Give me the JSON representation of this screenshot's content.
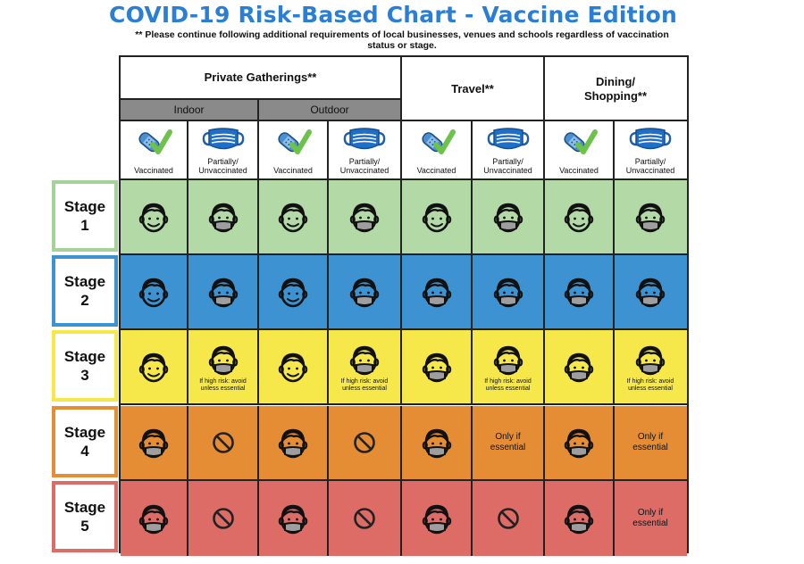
{
  "title": "COVID-19 Risk-Based Chart - Vaccine Edition",
  "subtitle": "** Please continue following additional requirements of local businesses, venues and schools regardless of vaccination status or stage.",
  "categories": {
    "private": "Private Gatherings**",
    "indoor": "Indoor",
    "outdoor": "Outdoor",
    "travel": "Travel**",
    "dining": "Dining/ Shopping**"
  },
  "columns": {
    "vaccinated": "Vaccinated",
    "unvaccinated": "Partially/ Unvaccinated"
  },
  "stages": [
    {
      "label": "Stage 1",
      "color": "#b3d9a6",
      "border": "#a7d19a",
      "cells": [
        {
          "t": "face"
        },
        {
          "t": "mask"
        },
        {
          "t": "face"
        },
        {
          "t": "mask"
        },
        {
          "t": "face"
        },
        {
          "t": "mask"
        },
        {
          "t": "face"
        },
        {
          "t": "mask"
        }
      ]
    },
    {
      "label": "Stage 2",
      "color": "#3d93d1",
      "border": "#3d93d1",
      "cells": [
        {
          "t": "face"
        },
        {
          "t": "mask"
        },
        {
          "t": "face"
        },
        {
          "t": "mask"
        },
        {
          "t": "mask"
        },
        {
          "t": "mask"
        },
        {
          "t": "mask"
        },
        {
          "t": "mask"
        }
      ]
    },
    {
      "label": "Stage 3",
      "color": "#f6e84a",
      "border": "#f6e84a",
      "cells": [
        {
          "t": "face"
        },
        {
          "t": "mask",
          "note": "If high risk: avoid unless essential"
        },
        {
          "t": "face"
        },
        {
          "t": "mask",
          "note": "If high risk: avoid unless essential"
        },
        {
          "t": "mask"
        },
        {
          "t": "mask",
          "note": "If high risk: avoid unless essential"
        },
        {
          "t": "mask"
        },
        {
          "t": "mask",
          "note": "If high risk: avoid unless essential"
        }
      ]
    },
    {
      "label": "Stage 4",
      "color": "#e48d35",
      "border": "#e48d35",
      "cells": [
        {
          "t": "mask"
        },
        {
          "t": "no"
        },
        {
          "t": "mask"
        },
        {
          "t": "no"
        },
        {
          "t": "mask"
        },
        {
          "t": "text",
          "text": "Only if essential"
        },
        {
          "t": "mask"
        },
        {
          "t": "text",
          "text": "Only if essential"
        }
      ]
    },
    {
      "label": "Stage 5",
      "color": "#dd6b66",
      "border": "#dd6b66",
      "cells": [
        {
          "t": "mask"
        },
        {
          "t": "no"
        },
        {
          "t": "mask"
        },
        {
          "t": "no"
        },
        {
          "t": "mask"
        },
        {
          "t": "no"
        },
        {
          "t": "mask"
        },
        {
          "t": "text",
          "text": "Only if essential"
        }
      ]
    }
  ]
}
